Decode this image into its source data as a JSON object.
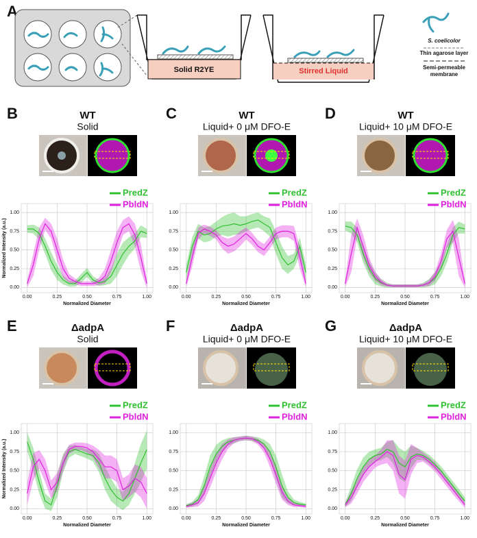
{
  "diagram": {
    "label": "A",
    "solid_label": "Solid R2YE",
    "liquid_label": "Stirred Liquid",
    "legend": [
      "S. coelicolor",
      "Thin agarose layer",
      "Semi-permeable",
      "membrane"
    ]
  },
  "chart_data": [
    {
      "type": "line",
      "label": "B",
      "title": "WT",
      "subtitle": "Solid",
      "xlabel": "Normalized Diameter",
      "ylabel": "Normalized Intensity (a.u.)",
      "x": [
        0,
        0.05,
        0.1,
        0.15,
        0.2,
        0.25,
        0.3,
        0.35,
        0.4,
        0.45,
        0.5,
        0.55,
        0.6,
        0.65,
        0.7,
        0.75,
        0.8,
        0.85,
        0.9,
        0.95,
        1
      ],
      "series": [
        {
          "name": "PredZ",
          "color": "#2fc02f",
          "values": [
            0.78,
            0.78,
            0.72,
            0.55,
            0.35,
            0.2,
            0.1,
            0.05,
            0.05,
            0.12,
            0.2,
            0.1,
            0.06,
            0.08,
            0.15,
            0.3,
            0.45,
            0.55,
            0.62,
            0.75,
            0.72
          ],
          "error": [
            0.05,
            0.06,
            0.08,
            0.1,
            0.12,
            0.1,
            0.06,
            0.04,
            0.04,
            0.06,
            0.06,
            0.05,
            0.04,
            0.05,
            0.1,
            0.15,
            0.15,
            0.12,
            0.1,
            0.08,
            0.06
          ]
        },
        {
          "name": "PbldN",
          "color": "#e020e0",
          "values": [
            0.05,
            0.3,
            0.65,
            0.85,
            0.75,
            0.5,
            0.25,
            0.12,
            0.08,
            0.05,
            0.05,
            0.05,
            0.08,
            0.15,
            0.35,
            0.6,
            0.8,
            0.85,
            0.7,
            0.4,
            0.05
          ],
          "error": [
            0.05,
            0.15,
            0.15,
            0.08,
            0.1,
            0.15,
            0.12,
            0.06,
            0.04,
            0.03,
            0.03,
            0.03,
            0.05,
            0.1,
            0.15,
            0.15,
            0.1,
            0.1,
            0.15,
            0.18,
            0.06
          ]
        }
      ],
      "xlim": [
        -0.05,
        1.05
      ],
      "ylim": [
        -0.07,
        1.12
      ],
      "xticks": [
        {
          "value": 0,
          "label": "0.00"
        },
        {
          "value": 0.25,
          "label": "0.25"
        },
        {
          "value": 0.5,
          "label": "0.50"
        },
        {
          "value": 0.75,
          "label": "0.75"
        },
        {
          "value": 1,
          "label": "1.00"
        }
      ],
      "yticks": [
        {
          "value": 0,
          "label": "0.00"
        },
        {
          "value": 0.25,
          "label": "0.25"
        },
        {
          "value": 0.5,
          "label": "0.50"
        },
        {
          "value": 0.75,
          "label": "0.75"
        },
        {
          "value": 1,
          "label": "1.00"
        }
      ],
      "grid": true
    },
    {
      "type": "line",
      "label": "C",
      "title": "WT",
      "subtitle": "Liquid+ 0 μM DFO-E",
      "xlabel": "Normalized Diameter",
      "x": [
        0,
        0.05,
        0.1,
        0.15,
        0.2,
        0.25,
        0.3,
        0.35,
        0.4,
        0.45,
        0.5,
        0.55,
        0.6,
        0.65,
        0.7,
        0.75,
        0.8,
        0.85,
        0.9,
        0.95,
        1
      ],
      "series": [
        {
          "name": "PredZ",
          "color": "#2fc02f",
          "values": [
            0.2,
            0.55,
            0.75,
            0.7,
            0.72,
            0.78,
            0.82,
            0.83,
            0.85,
            0.83,
            0.85,
            0.88,
            0.9,
            0.85,
            0.8,
            0.6,
            0.4,
            0.3,
            0.35,
            0.55,
            0.2
          ],
          "error": [
            0.1,
            0.12,
            0.1,
            0.1,
            0.1,
            0.1,
            0.12,
            0.15,
            0.15,
            0.12,
            0.1,
            0.1,
            0.1,
            0.1,
            0.12,
            0.15,
            0.15,
            0.12,
            0.1,
            0.12,
            0.1
          ]
        },
        {
          "name": "PbldN",
          "color": "#e020e0",
          "values": [
            0.05,
            0.4,
            0.72,
            0.78,
            0.75,
            0.7,
            0.6,
            0.55,
            0.58,
            0.65,
            0.72,
            0.65,
            0.55,
            0.5,
            0.6,
            0.72,
            0.75,
            0.75,
            0.72,
            0.4,
            0.05
          ],
          "error": [
            0.05,
            0.12,
            0.08,
            0.06,
            0.06,
            0.06,
            0.08,
            0.1,
            0.1,
            0.1,
            0.08,
            0.08,
            0.08,
            0.08,
            0.08,
            0.08,
            0.08,
            0.08,
            0.1,
            0.15,
            0.05
          ]
        }
      ],
      "xlim": [
        -0.05,
        1.05
      ],
      "ylim": [
        -0.07,
        1.12
      ],
      "xticks": [
        {
          "value": 0,
          "label": "0.00"
        },
        {
          "value": 0.25,
          "label": "0.25"
        },
        {
          "value": 0.5,
          "label": "0.50"
        },
        {
          "value": 0.75,
          "label": "0.75"
        },
        {
          "value": 1,
          "label": "1.00"
        }
      ],
      "yticks": [
        {
          "value": 0,
          "label": "0.00"
        },
        {
          "value": 0.25,
          "label": "0.25"
        },
        {
          "value": 0.5,
          "label": "0.50"
        },
        {
          "value": 0.75,
          "label": "0.75"
        },
        {
          "value": 1,
          "label": "1.00"
        }
      ],
      "grid": true
    },
    {
      "type": "line",
      "label": "D",
      "title": "WT",
      "subtitle": "Liquid+ 10 μM DFO-E",
      "xlabel": "Normalized Diameter",
      "x": [
        0,
        0.05,
        0.1,
        0.15,
        0.2,
        0.25,
        0.3,
        0.35,
        0.4,
        0.45,
        0.5,
        0.55,
        0.6,
        0.65,
        0.7,
        0.75,
        0.8,
        0.85,
        0.9,
        0.95,
        1
      ],
      "series": [
        {
          "name": "PredZ",
          "color": "#2fc02f",
          "values": [
            0.82,
            0.8,
            0.7,
            0.45,
            0.25,
            0.12,
            0.06,
            0.03,
            0.02,
            0.02,
            0.02,
            0.02,
            0.02,
            0.03,
            0.06,
            0.12,
            0.25,
            0.45,
            0.7,
            0.8,
            0.78
          ],
          "error": [
            0.06,
            0.08,
            0.1,
            0.12,
            0.1,
            0.08,
            0.05,
            0.03,
            0.02,
            0.02,
            0.02,
            0.02,
            0.02,
            0.03,
            0.05,
            0.08,
            0.1,
            0.12,
            0.1,
            0.08,
            0.06
          ]
        },
        {
          "name": "PbldN",
          "color": "#e020e0",
          "values": [
            0.05,
            0.45,
            0.8,
            0.55,
            0.3,
            0.15,
            0.07,
            0.03,
            0.02,
            0.02,
            0.02,
            0.02,
            0.02,
            0.03,
            0.06,
            0.15,
            0.35,
            0.65,
            0.75,
            0.4,
            0.05
          ],
          "error": [
            0.05,
            0.25,
            0.12,
            0.15,
            0.1,
            0.06,
            0.04,
            0.02,
            0.02,
            0.02,
            0.02,
            0.02,
            0.02,
            0.02,
            0.04,
            0.06,
            0.1,
            0.12,
            0.15,
            0.25,
            0.05
          ]
        }
      ],
      "xlim": [
        -0.05,
        1.05
      ],
      "ylim": [
        -0.07,
        1.12
      ],
      "xticks": [
        {
          "value": 0,
          "label": "0.00"
        },
        {
          "value": 0.25,
          "label": "0.25"
        },
        {
          "value": 0.5,
          "label": "0.50"
        },
        {
          "value": 0.75,
          "label": "0.75"
        },
        {
          "value": 1,
          "label": "1.00"
        }
      ],
      "yticks": [
        {
          "value": 0,
          "label": "0.00"
        },
        {
          "value": 0.25,
          "label": "0.25"
        },
        {
          "value": 0.5,
          "label": "0.50"
        },
        {
          "value": 0.75,
          "label": "0.75"
        },
        {
          "value": 1,
          "label": "1.00"
        }
      ],
      "grid": true
    },
    {
      "type": "line",
      "label": "E",
      "title": "ΔadpA",
      "subtitle": "Solid",
      "xlabel": "Normalized Diameter",
      "ylabel": "Normalized Intensity (a.u.)",
      "x": [
        0,
        0.05,
        0.1,
        0.15,
        0.2,
        0.25,
        0.3,
        0.35,
        0.4,
        0.45,
        0.5,
        0.55,
        0.6,
        0.65,
        0.7,
        0.75,
        0.8,
        0.85,
        0.9,
        0.95,
        1
      ],
      "series": [
        {
          "name": "PredZ",
          "color": "#2fc02f",
          "values": [
            0.88,
            0.65,
            0.35,
            0.1,
            0.05,
            0.3,
            0.6,
            0.75,
            0.78,
            0.75,
            0.72,
            0.7,
            0.6,
            0.4,
            0.25,
            0.15,
            0.1,
            0.2,
            0.4,
            0.6,
            0.78
          ],
          "error": [
            0.12,
            0.15,
            0.15,
            0.1,
            0.08,
            0.15,
            0.12,
            0.08,
            0.06,
            0.06,
            0.06,
            0.08,
            0.12,
            0.15,
            0.15,
            0.12,
            0.12,
            0.15,
            0.2,
            0.25,
            0.25
          ]
        },
        {
          "name": "PbldN",
          "color": "#e020e0",
          "values": [
            0.2,
            0.55,
            0.65,
            0.5,
            0.25,
            0.35,
            0.6,
            0.78,
            0.82,
            0.82,
            0.8,
            0.75,
            0.65,
            0.55,
            0.55,
            0.5,
            0.25,
            0.3,
            0.4,
            0.35,
            0.2
          ],
          "error": [
            0.15,
            0.18,
            0.12,
            0.15,
            0.12,
            0.12,
            0.1,
            0.06,
            0.05,
            0.05,
            0.06,
            0.08,
            0.12,
            0.15,
            0.15,
            0.15,
            0.15,
            0.15,
            0.18,
            0.2,
            0.2
          ]
        }
      ],
      "xlim": [
        -0.05,
        1.05
      ],
      "ylim": [
        -0.07,
        1.12
      ],
      "xticks": [
        {
          "value": 0,
          "label": "0.00"
        },
        {
          "value": 0.25,
          "label": "0.25"
        },
        {
          "value": 0.5,
          "label": "0.50"
        },
        {
          "value": 0.75,
          "label": "0.75"
        },
        {
          "value": 1,
          "label": "1.00"
        }
      ],
      "yticks": [
        {
          "value": 0,
          "label": "0.00"
        },
        {
          "value": 0.25,
          "label": "0.25"
        },
        {
          "value": 0.5,
          "label": "0.50"
        },
        {
          "value": 0.75,
          "label": "0.75"
        },
        {
          "value": 1,
          "label": "1.00"
        }
      ],
      "grid": true
    },
    {
      "type": "line",
      "label": "F",
      "title": "ΔadpA",
      "subtitle": "Liquid+ 0 μM DFO-E",
      "xlabel": "Normalized Diameter",
      "x": [
        0,
        0.05,
        0.1,
        0.15,
        0.2,
        0.25,
        0.3,
        0.35,
        0.4,
        0.45,
        0.5,
        0.55,
        0.6,
        0.65,
        0.7,
        0.75,
        0.8,
        0.85,
        0.9,
        0.95,
        1
      ],
      "series": [
        {
          "name": "PredZ",
          "color": "#2fc02f",
          "values": [
            0.04,
            0.06,
            0.12,
            0.3,
            0.55,
            0.72,
            0.82,
            0.88,
            0.9,
            0.92,
            0.93,
            0.92,
            0.9,
            0.85,
            0.75,
            0.55,
            0.3,
            0.15,
            0.08,
            0.06,
            0.05
          ],
          "error": [
            0.02,
            0.03,
            0.06,
            0.12,
            0.15,
            0.12,
            0.08,
            0.05,
            0.04,
            0.03,
            0.03,
            0.03,
            0.04,
            0.06,
            0.1,
            0.15,
            0.15,
            0.08,
            0.04,
            0.03,
            0.02
          ]
        },
        {
          "name": "PbldN",
          "color": "#e020e0",
          "values": [
            0.03,
            0.05,
            0.08,
            0.2,
            0.4,
            0.6,
            0.75,
            0.85,
            0.9,
            0.92,
            0.93,
            0.92,
            0.88,
            0.8,
            0.65,
            0.45,
            0.22,
            0.1,
            0.05,
            0.04,
            0.03
          ],
          "error": [
            0.02,
            0.03,
            0.05,
            0.1,
            0.12,
            0.12,
            0.1,
            0.06,
            0.04,
            0.03,
            0.03,
            0.03,
            0.04,
            0.06,
            0.1,
            0.12,
            0.1,
            0.05,
            0.03,
            0.02,
            0.02
          ]
        }
      ],
      "xlim": [
        -0.05,
        1.05
      ],
      "ylim": [
        -0.07,
        1.12
      ],
      "xticks": [
        {
          "value": 0,
          "label": "0.00"
        },
        {
          "value": 0.25,
          "label": "0.25"
        },
        {
          "value": 0.5,
          "label": "0.50"
        },
        {
          "value": 0.75,
          "label": "0.75"
        },
        {
          "value": 1,
          "label": "1.00"
        }
      ],
      "yticks": [
        {
          "value": 0,
          "label": "0.00"
        },
        {
          "value": 0.25,
          "label": "0.25"
        },
        {
          "value": 0.5,
          "label": "0.50"
        },
        {
          "value": 0.75,
          "label": "0.75"
        },
        {
          "value": 1,
          "label": "1.00"
        }
      ],
      "grid": true
    },
    {
      "type": "line",
      "label": "G",
      "title": "ΔadpA",
      "subtitle": "Liquid+ 10 μM DFO-E",
      "xlabel": "Normalized Diameter",
      "x": [
        0,
        0.05,
        0.1,
        0.15,
        0.2,
        0.25,
        0.3,
        0.35,
        0.4,
        0.45,
        0.5,
        0.55,
        0.6,
        0.65,
        0.7,
        0.75,
        0.8,
        0.85,
        0.9,
        0.95,
        1
      ],
      "series": [
        {
          "name": "PredZ",
          "color": "#2fc02f",
          "values": [
            0.05,
            0.2,
            0.4,
            0.55,
            0.65,
            0.7,
            0.72,
            0.78,
            0.75,
            0.6,
            0.55,
            0.68,
            0.72,
            0.7,
            0.65,
            0.58,
            0.5,
            0.4,
            0.3,
            0.2,
            0.1
          ],
          "error": [
            0.03,
            0.1,
            0.12,
            0.12,
            0.1,
            0.08,
            0.08,
            0.1,
            0.15,
            0.2,
            0.2,
            0.15,
            0.08,
            0.06,
            0.06,
            0.06,
            0.06,
            0.06,
            0.06,
            0.06,
            0.05
          ]
        },
        {
          "name": "PbldN",
          "color": "#e020e0",
          "values": [
            0.05,
            0.15,
            0.3,
            0.45,
            0.55,
            0.62,
            0.68,
            0.75,
            0.7,
            0.45,
            0.38,
            0.65,
            0.7,
            0.68,
            0.62,
            0.55,
            0.45,
            0.35,
            0.25,
            0.15,
            0.05
          ],
          "error": [
            0.03,
            0.08,
            0.1,
            0.1,
            0.1,
            0.08,
            0.1,
            0.15,
            0.2,
            0.25,
            0.25,
            0.2,
            0.1,
            0.06,
            0.06,
            0.06,
            0.06,
            0.06,
            0.06,
            0.05,
            0.04
          ]
        }
      ],
      "xlim": [
        -0.05,
        1.05
      ],
      "ylim": [
        -0.07,
        1.12
      ],
      "xticks": [
        {
          "value": 0,
          "label": "0.00"
        },
        {
          "value": 0.25,
          "label": "0.25"
        },
        {
          "value": 0.5,
          "label": "0.50"
        },
        {
          "value": 0.75,
          "label": "0.75"
        },
        {
          "value": 1,
          "label": "1.00"
        }
      ],
      "yticks": [
        {
          "value": 0,
          "label": "0.00"
        },
        {
          "value": 0.25,
          "label": "0.25"
        },
        {
          "value": 0.5,
          "label": "0.50"
        },
        {
          "value": 0.75,
          "label": "0.75"
        },
        {
          "value": 1,
          "label": "1.00"
        }
      ],
      "grid": true
    }
  ]
}
